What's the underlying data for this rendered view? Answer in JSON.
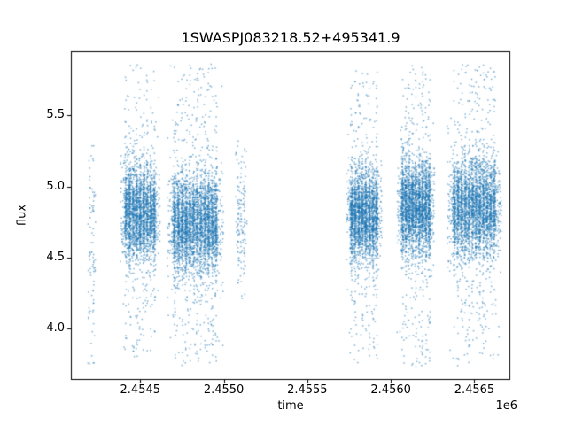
{
  "chart_data": {
    "type": "scatter",
    "title": "1SWASPJ083218.52+495341.9",
    "xlabel": "time",
    "ylabel": "flux",
    "x_offset": "1e6",
    "xlim": [
      2454085,
      2456715
    ],
    "ylim": [
      3.64,
      5.95
    ],
    "grid": false,
    "legend": null,
    "marker_color": "#1f77b4",
    "marker_alpha": 0.55,
    "marker_size": 1.5,
    "x_ticks": [
      {
        "value": 2454500,
        "label": "2.4545"
      },
      {
        "value": 2455000,
        "label": "2.4550"
      },
      {
        "value": 2455500,
        "label": "2.4555"
      },
      {
        "value": 2456000,
        "label": "2.4560"
      },
      {
        "value": 2456500,
        "label": "2.4565"
      }
    ],
    "y_ticks": [
      {
        "value": 4.0,
        "label": "4.0"
      },
      {
        "value": 4.5,
        "label": "4.5"
      },
      {
        "value": 5.0,
        "label": "5.0"
      },
      {
        "value": 5.5,
        "label": "5.5"
      }
    ],
    "seed": 7,
    "clusters": [
      {
        "center": 2454210,
        "halfwidth": 18,
        "n": 90,
        "streaks": 2,
        "halo_frac": 0.5,
        "flux_mean": 4.55,
        "flux_sigma": 0.35,
        "outlier_frac": 0.45,
        "flux_min": 3.72,
        "flux_max": 5.32
      },
      {
        "center": 2454500,
        "halfwidth": 95,
        "n": 2600,
        "streaks": 9,
        "halo_frac": 0.15,
        "flux_mean": 4.82,
        "flux_sigma": 0.17,
        "outlier_frac": 0.1,
        "flux_min": 3.8,
        "flux_max": 5.86
      },
      {
        "center": 2454830,
        "halfwidth": 135,
        "n": 3600,
        "streaks": 12,
        "halo_frac": 0.18,
        "flux_mean": 4.74,
        "flux_sigma": 0.18,
        "outlier_frac": 0.12,
        "flux_min": 3.74,
        "flux_max": 5.86
      },
      {
        "center": 2455105,
        "halfwidth": 28,
        "n": 150,
        "streaks": 3,
        "halo_frac": 0.3,
        "flux_mean": 4.75,
        "flux_sigma": 0.22,
        "outlier_frac": 0.2,
        "flux_min": 4.15,
        "flux_max": 5.33
      },
      {
        "center": 2455840,
        "halfwidth": 85,
        "n": 2500,
        "streaks": 8,
        "halo_frac": 0.15,
        "flux_mean": 4.8,
        "flux_sigma": 0.16,
        "outlier_frac": 0.1,
        "flux_min": 3.76,
        "flux_max": 5.84
      },
      {
        "center": 2456150,
        "halfwidth": 90,
        "n": 2800,
        "streaks": 9,
        "halo_frac": 0.15,
        "flux_mean": 4.85,
        "flux_sigma": 0.17,
        "outlier_frac": 0.12,
        "flux_min": 3.72,
        "flux_max": 5.85
      },
      {
        "center": 2456500,
        "halfwidth": 130,
        "n": 3300,
        "streaks": 12,
        "halo_frac": 0.18,
        "flux_mean": 4.85,
        "flux_sigma": 0.18,
        "outlier_frac": 0.12,
        "flux_min": 3.74,
        "flux_max": 5.86
      }
    ]
  }
}
